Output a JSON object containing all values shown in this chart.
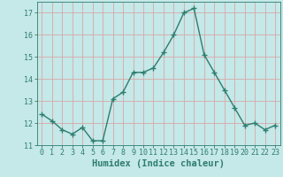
{
  "x": [
    0,
    1,
    2,
    3,
    4,
    5,
    6,
    7,
    8,
    9,
    10,
    11,
    12,
    13,
    14,
    15,
    16,
    17,
    18,
    19,
    20,
    21,
    22,
    23
  ],
  "y": [
    12.4,
    12.1,
    11.7,
    11.5,
    11.8,
    11.2,
    11.2,
    13.1,
    13.4,
    14.3,
    14.3,
    14.5,
    15.2,
    16.0,
    17.0,
    17.2,
    15.1,
    14.3,
    13.5,
    12.7,
    11.9,
    12.0,
    11.7,
    11.9
  ],
  "line_color": "#2e7d6e",
  "marker": "+",
  "marker_size": 4,
  "line_width": 1.0,
  "bg_color": "#c5e8e8",
  "grid_color": "#d8a8a8",
  "xlabel": "Humidex (Indice chaleur)",
  "xlabel_fontsize": 7.5,
  "tick_fontsize": 6,
  "ylim": [
    11,
    17.5
  ],
  "xlim": [
    -0.5,
    23.5
  ],
  "yticks": [
    11,
    12,
    13,
    14,
    15,
    16,
    17
  ],
  "xticks": [
    0,
    1,
    2,
    3,
    4,
    5,
    6,
    7,
    8,
    9,
    10,
    11,
    12,
    13,
    14,
    15,
    16,
    17,
    18,
    19,
    20,
    21,
    22,
    23
  ]
}
